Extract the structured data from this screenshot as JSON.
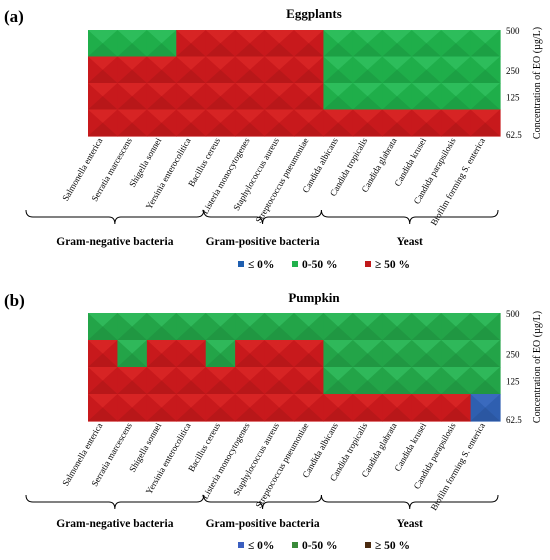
{
  "chart_data": [
    {
      "type": "heatmap",
      "panel_label": "(a)",
      "title": "Eggplants",
      "ylabel": "Concentration of EO (µg/L)",
      "y_levels": [
        "500",
        "250",
        "125",
        "62.5"
      ],
      "categories": [
        "Salmonella enterica",
        "Serratia marcescens",
        "Shigella sonnei",
        "Yersinia enterocolitica",
        "Bacillus cereus",
        "Listeria monocytogenes",
        "Staphylococcus aureus",
        "Streptococcus pneumoniae",
        "Candida albicans",
        "Candida tropicalis",
        "Candida glabrata",
        "Candida krusei",
        "Candida parapsilosis",
        "Biofilm forming S. enterica"
      ],
      "groups": [
        {
          "label": "Gram-negative bacteria",
          "start": 0,
          "end": 3
        },
        {
          "label": "Gram-positive bacteria",
          "start": 4,
          "end": 7
        },
        {
          "label": "Yeast",
          "start": 8,
          "end": 13
        }
      ],
      "legend": [
        {
          "label": "≤ 0%",
          "color": "#1f5fb0"
        },
        {
          "label": "0-50 %",
          "color": "#22b14c"
        },
        {
          "label": "≥ 50 %",
          "color": "#c0181a"
        }
      ],
      "cells": [
        [
          1,
          1,
          1,
          2,
          2,
          2,
          2,
          2,
          1,
          1,
          1,
          1,
          1,
          1
        ],
        [
          2,
          2,
          2,
          2,
          2,
          2,
          2,
          2,
          1,
          1,
          1,
          1,
          1,
          1
        ],
        [
          2,
          2,
          2,
          2,
          2,
          2,
          2,
          2,
          1,
          1,
          1,
          1,
          1,
          1
        ],
        [
          2,
          2,
          2,
          2,
          2,
          2,
          2,
          2,
          2,
          2,
          2,
          2,
          2,
          2
        ]
      ]
    },
    {
      "type": "heatmap",
      "panel_label": "(b)",
      "title": "Pumpkin",
      "ylabel": "Concentration of EO (µg/L)",
      "y_levels": [
        "500",
        "250",
        "125",
        "62.5"
      ],
      "categories": [
        "Salmonella enterica",
        "Serratia marcescens",
        "Shigella sonnei",
        "Yersinia enterocolitica",
        "Bacillus cereus",
        "Listeria monocytogenes",
        "Staphylococcus aureus",
        "Streptococcus pneumoniae",
        "Candida albicans",
        "Candida tropicalis",
        "Candida glabrata",
        "Candida krusei",
        "Candida parapsilosis",
        "Biofilm forming S. enterica"
      ],
      "groups": [
        {
          "label": "Gram-negative bacteria",
          "start": 0,
          "end": 3
        },
        {
          "label": "Gram-positive bacteria",
          "start": 4,
          "end": 7
        },
        {
          "label": "Yeast",
          "start": 8,
          "end": 13
        }
      ],
      "legend": [
        {
          "label": "≤ 0%",
          "color": "#3b5fc0"
        },
        {
          "label": "0-50 %",
          "color": "#3a8a3a"
        },
        {
          "label": "≥ 50 %",
          "color": "#4a2a10"
        }
      ],
      "cells": [
        [
          1,
          1,
          1,
          1,
          1,
          1,
          1,
          1,
          1,
          1,
          1,
          1,
          1,
          1
        ],
        [
          2,
          1,
          2,
          2,
          1,
          2,
          2,
          2,
          1,
          1,
          1,
          1,
          1,
          1
        ],
        [
          2,
          2,
          2,
          2,
          2,
          2,
          2,
          2,
          1,
          1,
          1,
          1,
          1,
          1
        ],
        [
          2,
          2,
          2,
          2,
          2,
          2,
          2,
          2,
          2,
          2,
          2,
          2,
          2,
          0
        ]
      ]
    }
  ]
}
